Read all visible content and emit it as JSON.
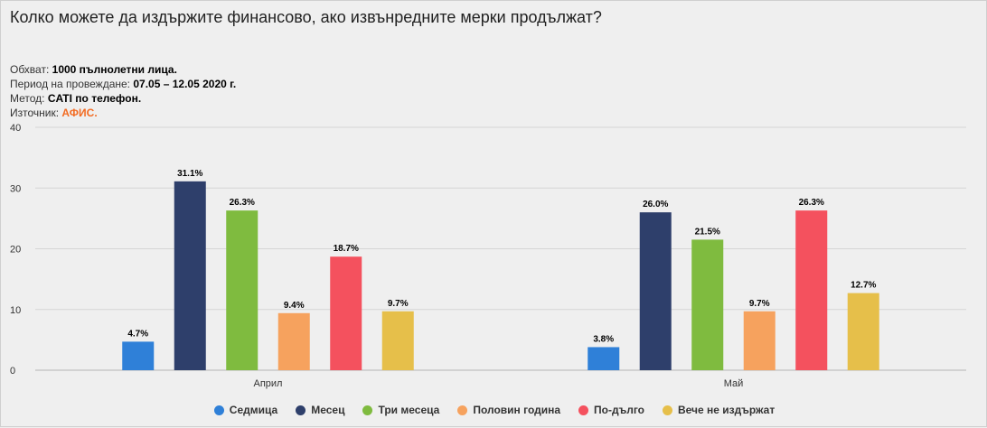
{
  "title": "Колко можете да издържите финансово, ако извънредните мерки продължат?",
  "meta": {
    "sample_label": "Обхват:",
    "sample_value": "1000 пълнолетни лица.",
    "period_label": "Период на провеждане:",
    "period_value": "07.05 – 12.05 2020 г.",
    "method_label": "Метод:",
    "method_value": "CATI по телефон.",
    "source_label": "Източник:",
    "source_value": "АФИС."
  },
  "colors": {
    "accent": "#f26b22"
  },
  "chart_data": {
    "type": "bar",
    "categories": [
      "Април",
      "Май"
    ],
    "ylim": [
      0,
      40
    ],
    "yticks": [
      0,
      10,
      20,
      30,
      40
    ],
    "series": [
      {
        "name": "Седмица",
        "color": "#2f80d8",
        "values": [
          4.7,
          3.8
        ],
        "labels": [
          "4.7%",
          "3.8%"
        ]
      },
      {
        "name": "Месец",
        "color": "#2e3f6b",
        "values": [
          31.1,
          26.0
        ],
        "labels": [
          "31.1%",
          "26.0%"
        ]
      },
      {
        "name": "Три месеца",
        "color": "#7fbb3f",
        "values": [
          26.3,
          21.5
        ],
        "labels": [
          "26.3%",
          "21.5%"
        ]
      },
      {
        "name": "Половин година",
        "color": "#f6a25e",
        "values": [
          9.4,
          9.7
        ],
        "labels": [
          "9.4%",
          "9.7%"
        ]
      },
      {
        "name": "По-дълго",
        "color": "#f4515e",
        "values": [
          18.7,
          26.3
        ],
        "labels": [
          "18.7%",
          "26.3%"
        ]
      },
      {
        "name": "Вече не издържат",
        "color": "#e6bf4a",
        "values": [
          9.7,
          12.7
        ],
        "labels": [
          "9.7%",
          "12.7%"
        ]
      }
    ],
    "grid": true,
    "legend": "bottom"
  }
}
